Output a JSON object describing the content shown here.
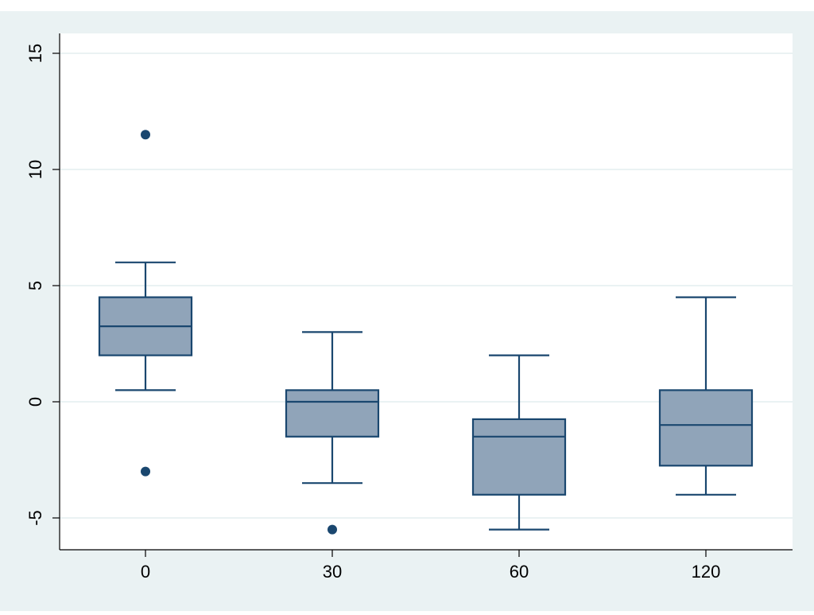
{
  "colors": {
    "page_top_strip": "#ffffff",
    "outer_background": "#eaf2f3",
    "plot_background": "#ffffff",
    "gridline": "#eaf2f3",
    "axis": "#000000",
    "box_fill": "#90a4b9",
    "box_stroke": "#1a476f",
    "outlier": "#1a476f",
    "text": "#000000"
  },
  "chart_data": {
    "type": "box",
    "title": "",
    "xlabel": "",
    "ylabel": "",
    "ylim": [
      -6.3,
      16.1
    ],
    "yticks": [
      -5,
      0,
      5,
      10,
      15
    ],
    "ytick_labels": [
      "-5",
      "0",
      "5",
      "10",
      "15"
    ],
    "ytick_label_rotation": "vertical",
    "grid": true,
    "legend": "none",
    "categories": [
      "0",
      "30",
      "60",
      "120"
    ],
    "boxes": [
      {
        "category": "0",
        "whisker_low": 0.5,
        "q1": 2.0,
        "median": 3.25,
        "q3": 4.5,
        "whisker_high": 6.0,
        "outliers": [
          11.5,
          -3.0
        ]
      },
      {
        "category": "30",
        "whisker_low": -3.5,
        "q1": -1.5,
        "median": 0.0,
        "q3": 0.5,
        "whisker_high": 3.0,
        "outliers": [
          -5.5
        ]
      },
      {
        "category": "60",
        "whisker_low": -5.5,
        "q1": -4.0,
        "median": -1.5,
        "q3": -0.75,
        "whisker_high": 2.0,
        "outliers": []
      },
      {
        "category": "120",
        "whisker_low": -4.0,
        "q1": -2.75,
        "median": -1.0,
        "q3": 0.5,
        "whisker_high": 4.5,
        "outliers": []
      }
    ]
  }
}
